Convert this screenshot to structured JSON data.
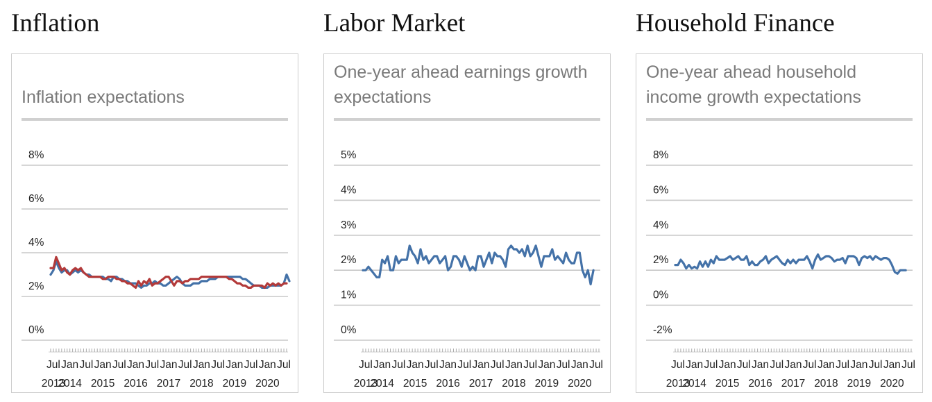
{
  "sections": [
    {
      "title": "Inflation"
    },
    {
      "title": "Labor Market"
    },
    {
      "title": "Household Finance"
    }
  ],
  "chart_data": [
    {
      "type": "line",
      "title": "Inflation expectations",
      "ylim": [
        0,
        8
      ],
      "yticks": [
        0,
        2,
        4,
        6,
        8
      ],
      "ytick_labels": [
        "0%",
        "2%",
        "4%",
        "6%",
        "8%"
      ],
      "xlim": [
        "2013-06",
        "2020-08"
      ],
      "month_labels": [
        "Jul",
        "Jan",
        "Jul",
        "Jan",
        "Jul",
        "Jan",
        "Jul",
        "Jan",
        "Jul",
        "Jan",
        "Jul",
        "Jan",
        "Jul",
        "Jan",
        "Jul"
      ],
      "year_labels": [
        "2013",
        "2014",
        "2015",
        "2016",
        "2017",
        "2018",
        "2019",
        "2020"
      ],
      "grid": true,
      "legend": "none",
      "series": [
        {
          "color": "#4472a8",
          "x_start": "2013-06",
          "values": [
            3.0,
            3.2,
            3.6,
            3.3,
            3.1,
            3.2,
            3.2,
            3.0,
            3.1,
            3.2,
            3.1,
            3.2,
            3.1,
            3.0,
            3.0,
            2.9,
            2.9,
            2.9,
            2.9,
            2.9,
            2.8,
            2.8,
            2.7,
            2.9,
            2.9,
            2.8,
            2.8,
            2.7,
            2.7,
            2.6,
            2.6,
            2.6,
            2.5,
            2.4,
            2.5,
            2.5,
            2.6,
            2.6,
            2.7,
            2.6,
            2.6,
            2.5,
            2.5,
            2.6,
            2.7,
            2.8,
            2.9,
            2.8,
            2.6,
            2.5,
            2.5,
            2.5,
            2.6,
            2.6,
            2.6,
            2.7,
            2.7,
            2.7,
            2.8,
            2.8,
            2.8,
            2.9,
            2.9,
            2.9,
            2.9,
            2.9,
            2.9,
            2.9,
            2.9,
            2.9,
            2.8,
            2.8,
            2.7,
            2.6,
            2.5,
            2.5,
            2.5,
            2.4,
            2.4,
            2.4,
            2.5,
            2.5,
            2.5,
            2.5,
            2.5,
            2.6,
            3.0,
            2.7
          ]
        },
        {
          "color": "#b33a3a",
          "x_start": "2013-06",
          "values": [
            3.3,
            3.3,
            3.8,
            3.5,
            3.2,
            3.3,
            3.1,
            3.0,
            3.2,
            3.3,
            3.2,
            3.3,
            3.1,
            3.0,
            2.9,
            2.9,
            2.9,
            2.9,
            2.9,
            2.8,
            2.8,
            2.9,
            2.9,
            2.9,
            2.8,
            2.8,
            2.7,
            2.7,
            2.6,
            2.6,
            2.5,
            2.4,
            2.7,
            2.5,
            2.7,
            2.6,
            2.8,
            2.5,
            2.6,
            2.6,
            2.7,
            2.8,
            2.9,
            2.9,
            2.7,
            2.5,
            2.7,
            2.7,
            2.6,
            2.7,
            2.7,
            2.8,
            2.8,
            2.8,
            2.8,
            2.9,
            2.9,
            2.9,
            2.9,
            2.9,
            2.9,
            2.9,
            2.9,
            2.9,
            2.9,
            2.8,
            2.8,
            2.7,
            2.6,
            2.6,
            2.5,
            2.5,
            2.4,
            2.4,
            2.5,
            2.5,
            2.5,
            2.5,
            2.4,
            2.6,
            2.5,
            2.6,
            2.5,
            2.6,
            2.5,
            2.6,
            2.6
          ]
        }
      ]
    },
    {
      "type": "line",
      "title": "One-year ahead earnings growth expectations",
      "ylim": [
        0,
        5
      ],
      "yticks": [
        0,
        1,
        2,
        3,
        4,
        5
      ],
      "ytick_labels": [
        "0%",
        "1%",
        "2%",
        "3%",
        "4%",
        "5%"
      ],
      "xlim": [
        "2013-06",
        "2020-08"
      ],
      "month_labels": [
        "Jul",
        "Jan",
        "Jul",
        "Jan",
        "Jul",
        "Jan",
        "Jul",
        "Jan",
        "Jul",
        "Jan",
        "Jul",
        "Jan",
        "Jul",
        "Jan",
        "Jul"
      ],
      "year_labels": [
        "2013",
        "2014",
        "2015",
        "2016",
        "2017",
        "2018",
        "2019",
        "2020"
      ],
      "grid": true,
      "legend": "none",
      "series": [
        {
          "color": "#4472a8",
          "x_start": "2013-06",
          "values": [
            2.0,
            2.0,
            2.1,
            2.0,
            1.9,
            1.8,
            1.8,
            2.3,
            2.2,
            2.4,
            2.0,
            2.0,
            2.4,
            2.2,
            2.3,
            2.3,
            2.3,
            2.7,
            2.5,
            2.4,
            2.2,
            2.6,
            2.3,
            2.4,
            2.2,
            2.3,
            2.4,
            2.4,
            2.2,
            2.3,
            2.4,
            2.0,
            2.1,
            2.4,
            2.4,
            2.3,
            2.1,
            2.4,
            2.2,
            2.0,
            2.1,
            2.0,
            2.4,
            2.4,
            2.1,
            2.3,
            2.5,
            2.2,
            2.5,
            2.4,
            2.4,
            2.3,
            2.1,
            2.6,
            2.7,
            2.6,
            2.6,
            2.5,
            2.6,
            2.4,
            2.7,
            2.4,
            2.5,
            2.7,
            2.4,
            2.1,
            2.4,
            2.4,
            2.4,
            2.6,
            2.3,
            2.4,
            2.3,
            2.2,
            2.5,
            2.3,
            2.2,
            2.2,
            2.5,
            2.5,
            2.0,
            1.8,
            2.0,
            1.6,
            2.0
          ]
        }
      ]
    },
    {
      "type": "line",
      "title": "One-year ahead household income growth expectations",
      "ylim": [
        -2,
        8
      ],
      "yticks": [
        -2,
        0,
        2,
        4,
        6,
        8
      ],
      "ytick_labels": [
        "-2%",
        "0%",
        "2%",
        "4%",
        "6%",
        "8%"
      ],
      "xlim": [
        "2013-06",
        "2020-08"
      ],
      "month_labels": [
        "Jul",
        "Jan",
        "Jul",
        "Jan",
        "Jul",
        "Jan",
        "Jul",
        "Jan",
        "Jul",
        "Jan",
        "Jul",
        "Jan",
        "Jul",
        "Jan",
        "Jul"
      ],
      "year_labels": [
        "2013",
        "2014",
        "2015",
        "2016",
        "2017",
        "2018",
        "2019",
        "2020"
      ],
      "grid": true,
      "legend": "none",
      "series": [
        {
          "color": "#4472a8",
          "x_start": "2013-06",
          "values": [
            2.3,
            2.3,
            2.6,
            2.4,
            2.1,
            2.3,
            2.1,
            2.2,
            2.1,
            2.5,
            2.2,
            2.5,
            2.2,
            2.6,
            2.4,
            2.8,
            2.6,
            2.6,
            2.6,
            2.7,
            2.8,
            2.6,
            2.7,
            2.8,
            2.6,
            2.6,
            2.8,
            2.3,
            2.5,
            2.3,
            2.3,
            2.5,
            2.6,
            2.8,
            2.4,
            2.6,
            2.7,
            2.8,
            2.6,
            2.4,
            2.3,
            2.6,
            2.4,
            2.6,
            2.4,
            2.6,
            2.6,
            2.6,
            2.8,
            2.5,
            2.1,
            2.6,
            2.9,
            2.6,
            2.7,
            2.8,
            2.8,
            2.7,
            2.5,
            2.6,
            2.6,
            2.7,
            2.4,
            2.8,
            2.8,
            2.8,
            2.7,
            2.3,
            2.7,
            2.8,
            2.7,
            2.8,
            2.6,
            2.8,
            2.7,
            2.6,
            2.7,
            2.7,
            2.6,
            2.3,
            1.9,
            1.8,
            2.0,
            2.0,
            2.0
          ]
        }
      ]
    }
  ]
}
